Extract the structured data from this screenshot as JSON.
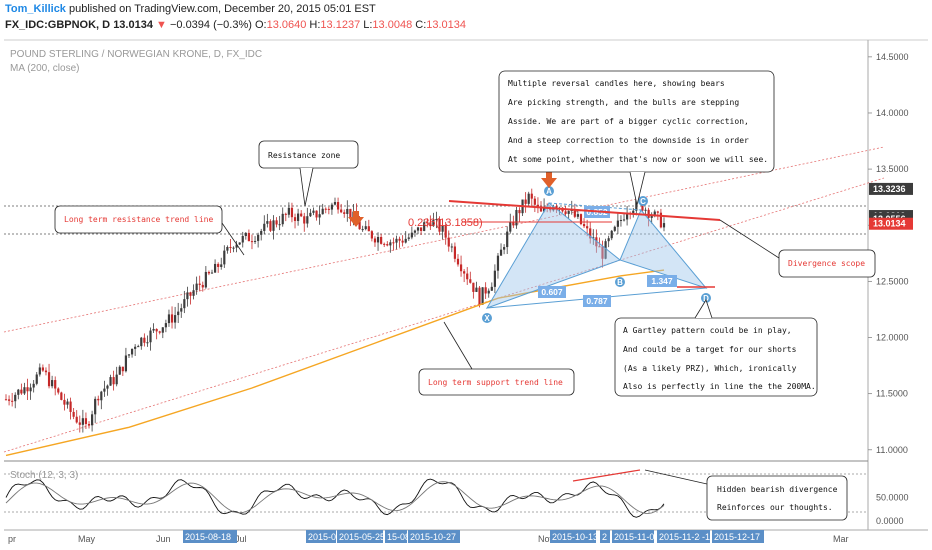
{
  "header": {
    "author": "Tom_Killick",
    "published": "published on TradingView.com, December 20, 2015 05:01 EST",
    "symbol": "FX_IDC:GBPNOK, D",
    "last": "13.0134",
    "change": "−0.0394 (−0.3%)",
    "open": "13.0640",
    "high": "13.1237",
    "low": "13.0048",
    "close": "13.0134"
  },
  "chart_title": "POUND STERLING / NORWEGIAN KRONE, D, FX_IDC",
  "indicator_label": "MA (200, close)",
  "stoch_label": "Stoch (12, 3, 3)",
  "colors": {
    "up": "#26a69a",
    "down": "#ef5350",
    "candle_up": "#3c3c3c",
    "candle_down": "#c62828",
    "ma": "#f5a623",
    "annotation_red": "#e53935",
    "pattern_blue": "#5a9fd4",
    "label_bg": "#7aaee8"
  },
  "annotations": {
    "resistance_zone": "Resistance zone",
    "long_term_resistance": "Long term resistance trend line",
    "long_term_support": "Long term support trend line",
    "divergence_scope": "Divergence scope",
    "fib_label": "0.236(13.1858)",
    "bears_note": [
      "Multiple reversal candles here, showing bears",
      "Are picking strength, and the bulls are stepping",
      "Asside. We are part of a bigger cyclic correction,",
      "And a steep correction to the downside is in order",
      "At some point, whether that's now or soon we will see."
    ],
    "gartley_note": [
      "A Gartley pattern could be in play,",
      "And could be a target for our shorts",
      "(As a likely PRZ), Which, ironically",
      "Also is perfectly in line the the 200MA."
    ],
    "stoch_note": [
      "Hidden bearish divergence",
      "Reinforces our thoughts."
    ]
  },
  "pattern": {
    "points": [
      "X",
      "A",
      "B",
      "C",
      "D"
    ],
    "ratios": [
      "0.852",
      "0.607",
      "1.347",
      "0.787"
    ]
  },
  "chart_data": {
    "type": "candlestick",
    "title": "POUND STERLING / NORWEGIAN KRONE, D, FX_IDC",
    "price_ylim": [
      11.0,
      14.5
    ],
    "price_ticks": [
      "14.5000",
      "14.0000",
      "13.5000",
      "13.0000",
      "12.5000",
      "12.0000",
      "11.5000",
      "11.0000"
    ],
    "price_labels": [
      {
        "value": "13.3236",
        "bg": "#3c3c3c"
      },
      {
        "value": "13.0819",
        "bg": "#3c3c3c"
      },
      {
        "value": "13.0556",
        "bg": "#3c3c3c"
      },
      {
        "value": "13.0134",
        "bg": "#e53935"
      }
    ],
    "stoch_ticks": [
      "50.0000",
      "0.0000"
    ],
    "stoch_ylim": [
      0,
      100
    ],
    "x_month_labels": [
      "pr",
      "May",
      "Jun",
      "Jul",
      "Nov",
      "Mar"
    ],
    "x_date_badges": [
      "2015-08-18",
      "2015-0",
      "2015-05-25",
      "15-08",
      "2015-10-27",
      "2015-10-13",
      "2",
      "2015-11-0",
      "2015-11-24",
      "-1",
      "2015-12-17"
    ],
    "series": [
      {
        "name": "GBPNOK",
        "close_path": [
          [
            0,
            11.45
          ],
          [
            6,
            11.55
          ],
          [
            12,
            11.7
          ],
          [
            18,
            11.45
          ],
          [
            22,
            11.3
          ],
          [
            26,
            11.2
          ],
          [
            30,
            11.5
          ],
          [
            36,
            11.65
          ],
          [
            42,
            11.95
          ],
          [
            48,
            12.05
          ],
          [
            55,
            12.2
          ],
          [
            62,
            12.45
          ],
          [
            68,
            12.6
          ],
          [
            74,
            12.85
          ],
          [
            80,
            12.9
          ],
          [
            86,
            13.0
          ],
          [
            92,
            13.1
          ],
          [
            98,
            13.05
          ],
          [
            104,
            13.15
          ],
          [
            108,
            13.2
          ],
          [
            112,
            13.1
          ],
          [
            116,
            12.95
          ],
          [
            120,
            12.9
          ],
          [
            126,
            12.85
          ],
          [
            132,
            12.9
          ],
          [
            138,
            13.05
          ],
          [
            142,
            12.95
          ],
          [
            146,
            12.75
          ],
          [
            150,
            12.55
          ],
          [
            154,
            12.35
          ],
          [
            158,
            12.5
          ],
          [
            162,
            12.85
          ],
          [
            166,
            13.1
          ],
          [
            170,
            13.25
          ],
          [
            174,
            13.1
          ],
          [
            178,
            13.2
          ],
          [
            182,
            13.15
          ],
          [
            186,
            13.05
          ],
          [
            190,
            12.9
          ],
          [
            194,
            12.75
          ],
          [
            198,
            12.95
          ],
          [
            202,
            13.15
          ],
          [
            206,
            13.2
          ],
          [
            210,
            13.1
          ],
          [
            214,
            13.01
          ]
        ]
      }
    ],
    "ma200": [
      [
        0,
        10.95
      ],
      [
        40,
        11.2
      ],
      [
        80,
        11.55
      ],
      [
        120,
        11.95
      ],
      [
        160,
        12.35
      ],
      [
        200,
        12.55
      ],
      [
        214,
        12.6
      ]
    ]
  }
}
